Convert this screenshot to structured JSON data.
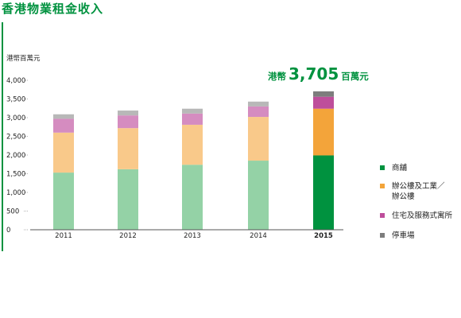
{
  "title": "香港物業租金收入",
  "callout": {
    "prefix": "港幣",
    "value": "3,705",
    "suffix": "百萬元"
  },
  "chart_data": {
    "type": "bar",
    "stacked": true,
    "ylabel": "港幣百萬元",
    "ylim": [
      0,
      4000
    ],
    "yticks": [
      0,
      500,
      1000,
      1500,
      2000,
      2500,
      3000,
      3500,
      4000
    ],
    "ytick_labels": [
      "0",
      "500",
      "1,000",
      "1,500",
      "2,000",
      "2,500",
      "3,000",
      "3,500",
      "4,000"
    ],
    "categories": [
      "2011",
      "2012",
      "2013",
      "2014",
      "2015"
    ],
    "highlight_category": "2015",
    "grid": false,
    "legend_position": "right",
    "series": [
      {
        "name": "商舖",
        "values": [
          1530,
          1620,
          1740,
          1850,
          1990
        ],
        "color": "#94d2a6",
        "highlight_color": "#00923f"
      },
      {
        "name": "辦公樓及工業／辦公樓",
        "values": [
          1070,
          1100,
          1070,
          1170,
          1250
        ],
        "color": "#f9c98a",
        "highlight_color": "#f3a43a"
      },
      {
        "name": "住宅及服務式寓所",
        "values": [
          370,
          340,
          300,
          280,
          320
        ],
        "color": "#d58cc0",
        "highlight_color": "#be4e9b"
      },
      {
        "name": "停車場",
        "values": [
          120,
          130,
          130,
          130,
          145
        ],
        "color": "#b8b8b8",
        "highlight_color": "#7d7d7d"
      }
    ]
  },
  "legend": {
    "items": [
      {
        "lines": [
          "商舖"
        ],
        "color": "#00923f"
      },
      {
        "lines": [
          "辦公樓及工業／",
          "辦公樓"
        ],
        "color": "#f3a43a"
      },
      {
        "lines": [
          "住宅及服務式寓所"
        ],
        "color": "#be4e9b"
      },
      {
        "lines": [
          "停車場"
        ],
        "color": "#7d7d7d"
      }
    ]
  }
}
